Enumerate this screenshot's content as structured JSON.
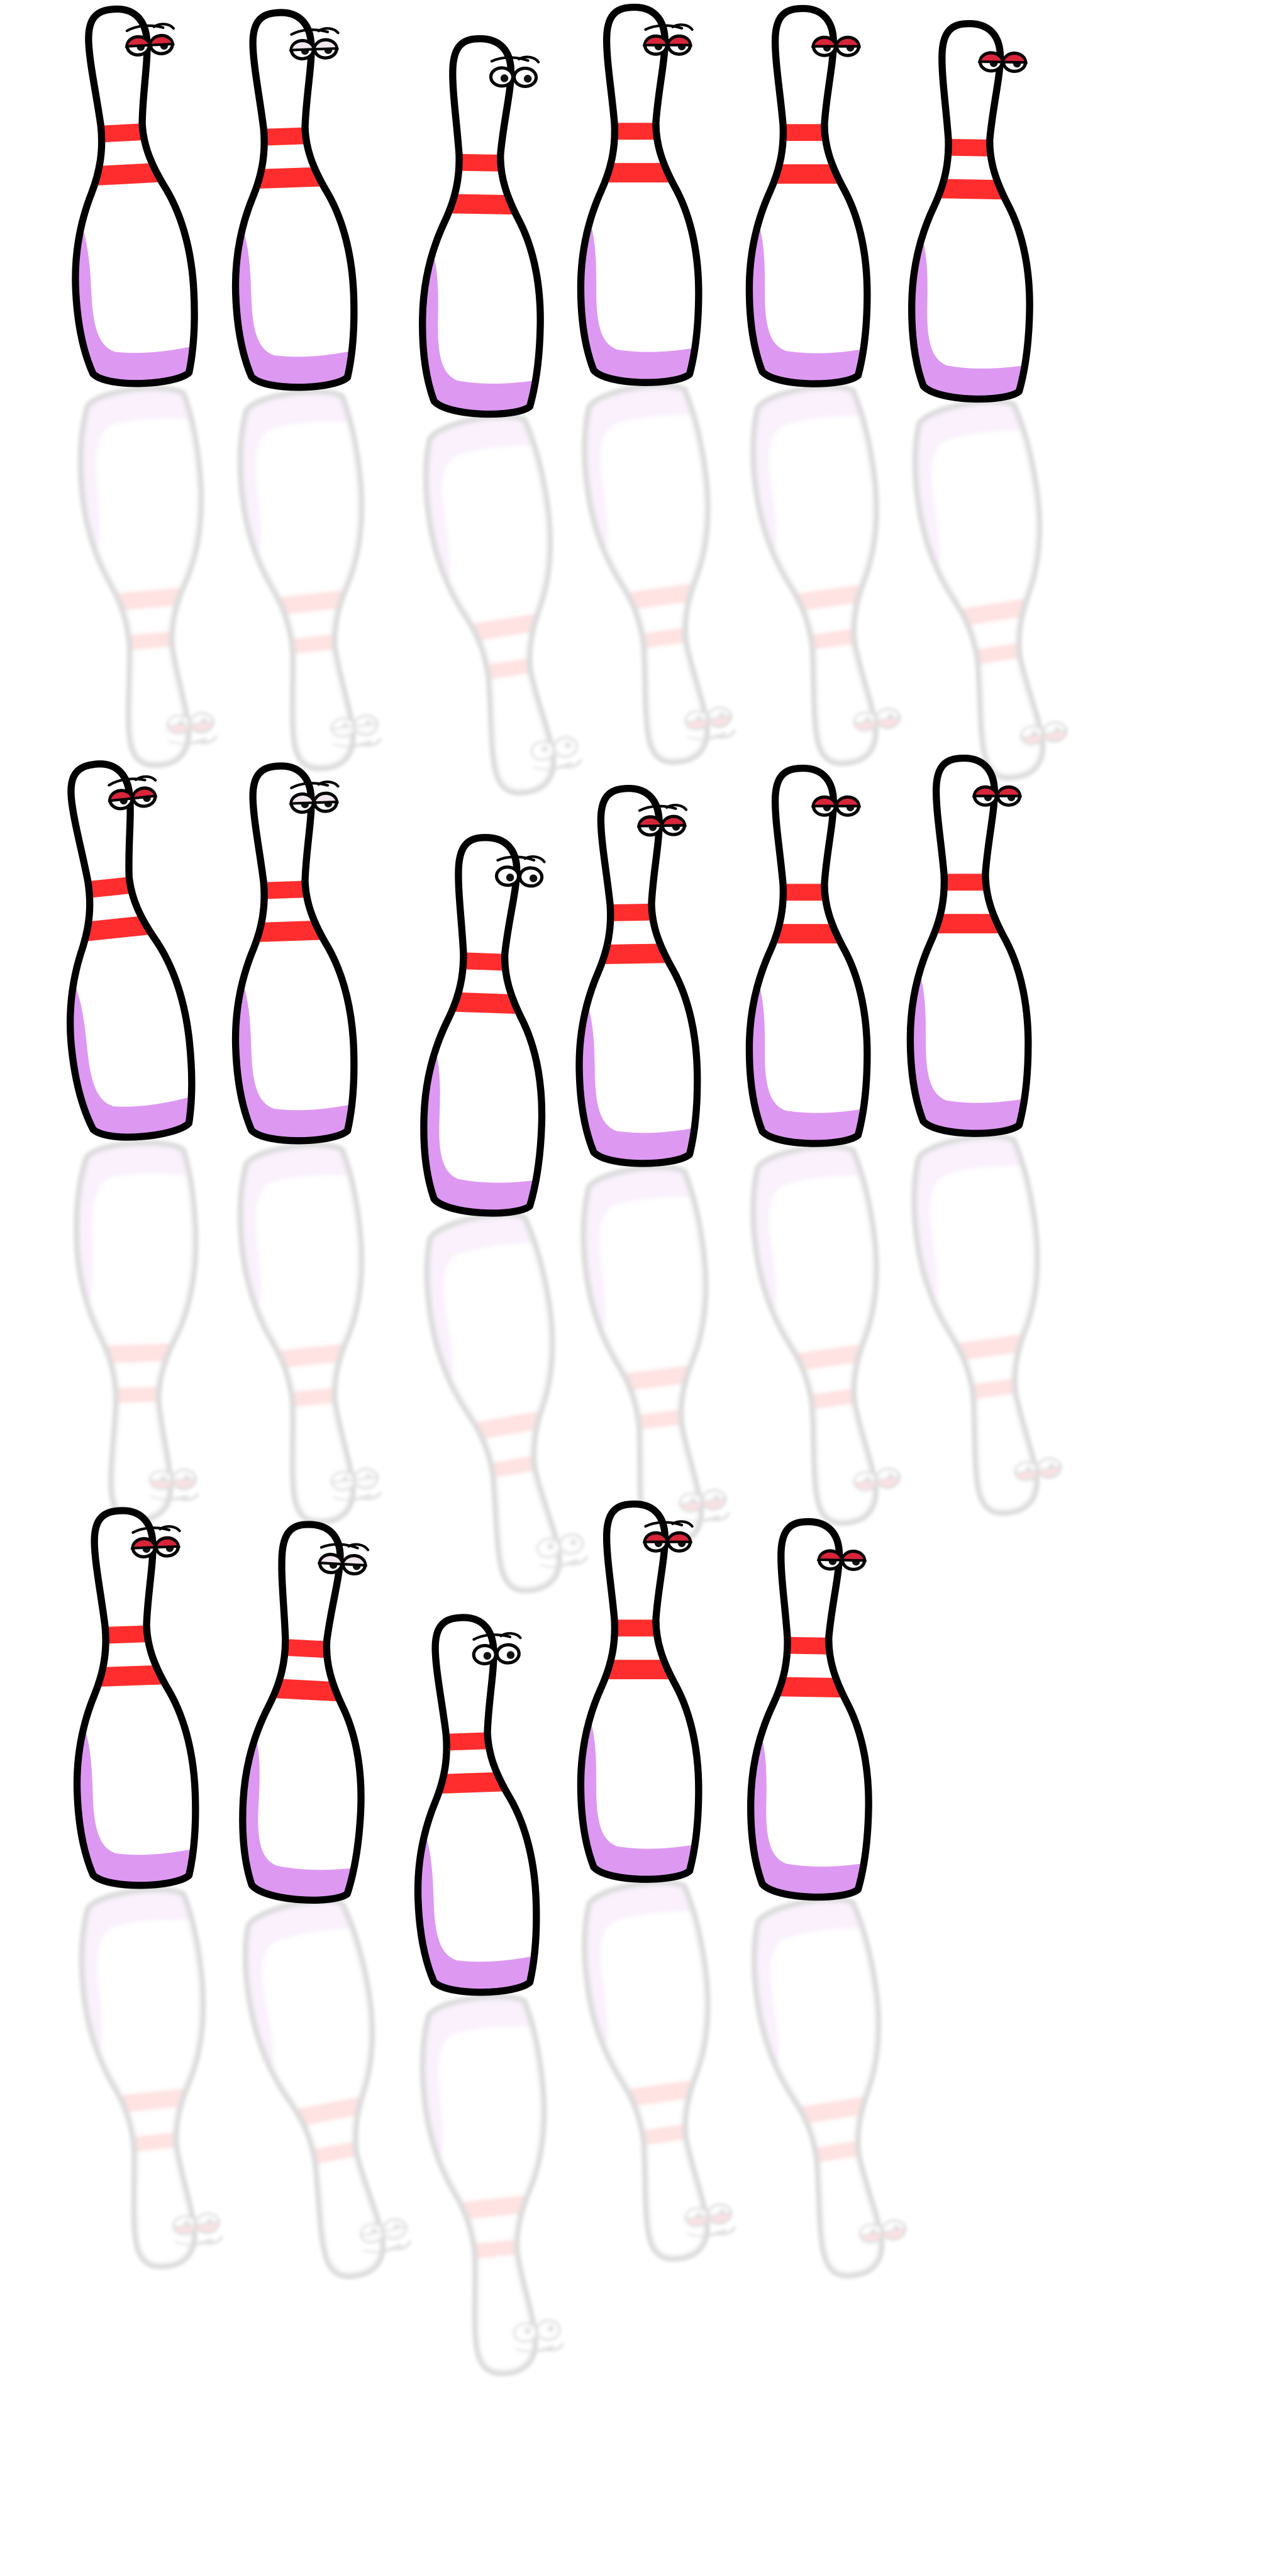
{
  "sheet": {
    "background": "#ffffff",
    "palette": {
      "outline": "#000000",
      "body": "#ffffff",
      "shade": "#dd99f2",
      "stripe": "#ff2d2d",
      "stripe_dark": "#b01c2c",
      "eye_white": "#ffffff",
      "pupil": "#111111",
      "lid": "#d8253a",
      "reflection_opacity": 0.13
    }
  },
  "sprites": [
    {
      "row": 1,
      "variant": "sleepy-red-lids",
      "tilt": -3,
      "eyes": "half",
      "lids": "red",
      "brows": true,
      "facing": "right"
    },
    {
      "row": 1,
      "variant": "squint-brow",
      "tilt": -2,
      "eyes": "half",
      "lids": "pale",
      "brows": true,
      "facing": "right"
    },
    {
      "row": 1,
      "variant": "wide-eyed",
      "tilt": 1,
      "eyes": "open",
      "lids": "none",
      "brows": true,
      "facing": "right"
    },
    {
      "row": 1,
      "variant": "sleepy-red-lids",
      "tilt": 0,
      "eyes": "half",
      "lids": "red",
      "brows": true,
      "facing": "right"
    },
    {
      "row": 1,
      "variant": "sleepy-red-lids",
      "tilt": 0,
      "eyes": "half",
      "lids": "red",
      "brows": false,
      "facing": "right"
    },
    {
      "row": 1,
      "variant": "sleepy",
      "tilt": 1,
      "eyes": "half",
      "lids": "red",
      "brows": false,
      "facing": "right"
    },
    {
      "row": 2,
      "variant": "sleepy-red-lids",
      "tilt": -6,
      "eyes": "half",
      "lids": "red",
      "brows": true,
      "facing": "right"
    },
    {
      "row": 2,
      "variant": "squint-brow",
      "tilt": -2,
      "eyes": "half",
      "lids": "pale",
      "brows": true,
      "facing": "right"
    },
    {
      "row": 2,
      "variant": "wide-eyed",
      "tilt": 2,
      "eyes": "open",
      "lids": "none",
      "brows": true,
      "facing": "right"
    },
    {
      "row": 2,
      "variant": "sleepy-red-lids",
      "tilt": -1,
      "eyes": "half",
      "lids": "red",
      "brows": true,
      "facing": "right"
    },
    {
      "row": 2,
      "variant": "sleepy-red-lids",
      "tilt": 0,
      "eyes": "half",
      "lids": "red",
      "brows": false,
      "facing": "right"
    },
    {
      "row": 2,
      "variant": "sleepy",
      "tilt": 0,
      "eyes": "half",
      "lids": "red",
      "brows": false,
      "facing": "right"
    },
    {
      "row": 3,
      "variant": "sleepy-red-lids",
      "tilt": -2,
      "eyes": "half",
      "lids": "red",
      "brows": true,
      "facing": "right"
    },
    {
      "row": 3,
      "variant": "squint-brow",
      "tilt": 3,
      "eyes": "half",
      "lids": "pale",
      "brows": true,
      "facing": "right"
    },
    {
      "row": 3,
      "variant": "wide-eyed",
      "tilt": -2,
      "eyes": "open",
      "lids": "none",
      "brows": true,
      "facing": "right"
    },
    {
      "row": 3,
      "variant": "sleepy-red-lids",
      "tilt": 0,
      "eyes": "half",
      "lids": "red",
      "brows": true,
      "facing": "right"
    },
    {
      "row": 3,
      "variant": "sleepy-red-lids",
      "tilt": 1,
      "eyes": "half",
      "lids": "red",
      "brows": false,
      "facing": "right"
    }
  ]
}
